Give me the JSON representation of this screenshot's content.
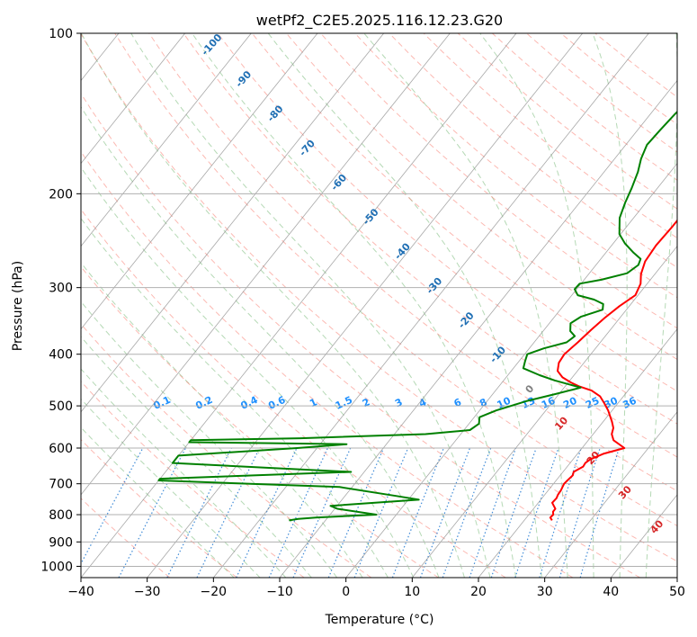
{
  "chart_data": {
    "type": "line",
    "title": "wetPf2_C2E5.2025.116.12.23.G20",
    "xlabel": "Temperature (°C)",
    "ylabel": "Pressure (hPa)",
    "xlim": [
      -40,
      50
    ],
    "ylim": [
      1050,
      100
    ],
    "log_y": true,
    "skew_t": true,
    "x_ticks": [
      "−40",
      "−30",
      "−20",
      "−10",
      "0",
      "10",
      "20",
      "30",
      "40",
      "50"
    ],
    "x_tick_values": [
      -40,
      -30,
      -20,
      -10,
      0,
      10,
      20,
      30,
      40,
      50
    ],
    "y_ticks": [
      "100",
      "200",
      "300",
      "400",
      "500",
      "600",
      "700",
      "800",
      "900",
      "1000"
    ],
    "y_tick_values": [
      100,
      200,
      300,
      400,
      500,
      600,
      700,
      800,
      900,
      1000
    ],
    "grid": true,
    "series": [
      {
        "color": "#ff0000",
        "points": [
          [
            24.2,
            820
          ],
          [
            23.6,
            810
          ],
          [
            23.7,
            800
          ],
          [
            23.3,
            790
          ],
          [
            23.3,
            780
          ],
          [
            22.1,
            760
          ],
          [
            22.2,
            745
          ],
          [
            22.0,
            735
          ],
          [
            21.9,
            720
          ],
          [
            21.6,
            700
          ],
          [
            21.7,
            690
          ],
          [
            21.9,
            675
          ],
          [
            21.6,
            665
          ],
          [
            22.4,
            650
          ],
          [
            22.3,
            640
          ],
          [
            22.6,
            630
          ],
          [
            23.9,
            615
          ],
          [
            26.4,
            600
          ],
          [
            23.8,
            580
          ],
          [
            22.8,
            565
          ],
          [
            22.3,
            550
          ],
          [
            21.3,
            535
          ],
          [
            19.4,
            510
          ],
          [
            18.0,
            495
          ],
          [
            16.5,
            480
          ],
          [
            14.5,
            468
          ],
          [
            12.2,
            460
          ],
          [
            10.4,
            452
          ],
          [
            8.5,
            442
          ],
          [
            7.0,
            430
          ],
          [
            6.2,
            415
          ],
          [
            6.0,
            400
          ],
          [
            6.6,
            380
          ],
          [
            7.1,
            360
          ],
          [
            7.7,
            342
          ],
          [
            8.5,
            325
          ],
          [
            9.6,
            310
          ],
          [
            9.0,
            295
          ],
          [
            7.9,
            283
          ],
          [
            7.0,
            268
          ],
          [
            6.7,
            250
          ],
          [
            6.9,
            230
          ],
          [
            6.9,
            210
          ],
          [
            6.3,
            190
          ],
          [
            6.6,
            170
          ],
          [
            6.3,
            150
          ],
          [
            6.1,
            130
          ],
          [
            6.2,
            115
          ],
          [
            6.4,
            100
          ]
        ]
      },
      {
        "color": "#008000",
        "points": [
          [
            -15.5,
            820
          ],
          [
            -14.3,
            815
          ],
          [
            -11.8,
            810
          ],
          [
            -3.0,
            800
          ],
          [
            -9.6,
            780
          ],
          [
            -11.0,
            770
          ],
          [
            1.6,
            750
          ],
          [
            -2.2,
            738
          ],
          [
            -11.9,
            710
          ],
          [
            -40,
            690
          ],
          [
            -40,
            685
          ],
          [
            -12.0,
            665
          ],
          [
            -40,
            640
          ],
          [
            -40,
            620
          ],
          [
            -23.0,
            600
          ],
          [
            -16.0,
            590
          ],
          [
            -40,
            585
          ],
          [
            -40,
            580
          ],
          [
            -23.7,
            575
          ],
          [
            -5.3,
            565
          ],
          [
            0.9,
            555
          ],
          [
            1.5,
            540
          ],
          [
            0.8,
            525
          ],
          [
            2.5,
            510
          ],
          [
            5.9,
            490
          ],
          [
            9.5,
            475
          ],
          [
            12.5,
            462
          ],
          [
            7.7,
            448
          ],
          [
            4.8,
            438
          ],
          [
            1.5,
            425
          ],
          [
            0.9,
            412
          ],
          [
            0.4,
            400
          ],
          [
            2.2,
            390
          ],
          [
            4.9,
            380
          ],
          [
            5.4,
            370
          ],
          [
            4.1,
            362
          ],
          [
            3.2,
            350
          ],
          [
            4.0,
            340
          ],
          [
            6.4,
            330
          ],
          [
            5.8,
            322
          ],
          [
            3.9,
            316
          ],
          [
            0.9,
            310
          ],
          [
            -0.3,
            302
          ],
          [
            -0.2,
            295
          ],
          [
            2.6,
            290
          ],
          [
            5.7,
            282
          ],
          [
            6.4,
            272
          ],
          [
            6.0,
            265
          ],
          [
            4.2,
            258
          ],
          [
            1.8,
            248
          ],
          [
            -0.2,
            238
          ],
          [
            -2.1,
            222
          ],
          [
            -3.1,
            208
          ],
          [
            -3.9,
            195
          ],
          [
            -4.9,
            182
          ],
          [
            -6.0,
            172
          ],
          [
            -6.8,
            162
          ],
          [
            -6.6,
            152
          ],
          [
            -6.3,
            142
          ],
          [
            -5.7,
            130
          ],
          [
            -4.7,
            115
          ],
          [
            -3.7,
            100
          ]
        ]
      }
    ],
    "dry_adiabat_labels": [
      "-100",
      "-90",
      "-80",
      "-70",
      "-60",
      "-50",
      "-40",
      "-30",
      "-20",
      "-10",
      "0",
      "10",
      "20",
      "30",
      "40"
    ],
    "mixing_ratio_labels": [
      "0.1",
      "0.2",
      "0.4",
      "0.6",
      "1",
      "1.5",
      "2",
      "3",
      "4",
      "6",
      "8",
      "10",
      "13",
      "16",
      "20",
      "25",
      "30",
      "36"
    ],
    "colors": {
      "temperature": "#ff0000",
      "dewpoint": "#008000",
      "dry_adiabat": "#fa8072",
      "moist_adiabat": "#6cb36c",
      "mixing_ratio": "#1f77d0",
      "isotherm": "#8a8a8a",
      "label_cold": "#1f6fb4",
      "label_warm": "#d62728",
      "label_zero": "#808080",
      "label_mixing": "#1e90ff"
    }
  }
}
